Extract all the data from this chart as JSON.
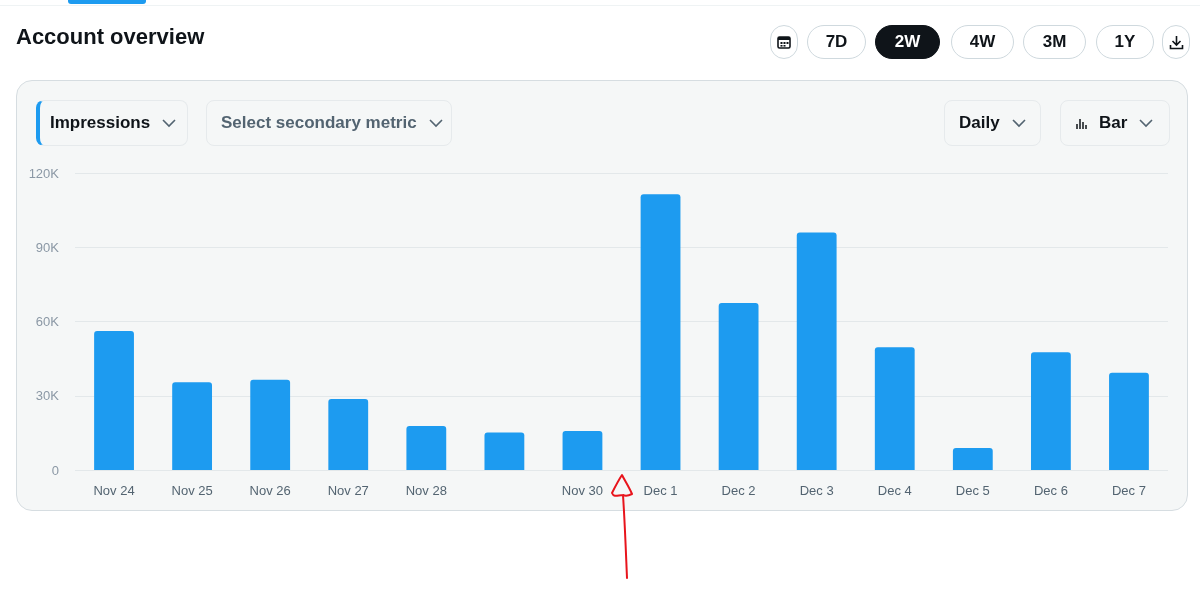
{
  "chart_data": {
    "type": "bar",
    "title": "Account overview",
    "annotations": [
      "7D",
      "2W",
      "4W",
      "3M",
      "1Y",
      "Impressions",
      "Select secondary metric",
      "Daily",
      "Bar"
    ],
    "categories": [
      "Nov 24",
      "Nov 25",
      "Nov 26",
      "Nov 27",
      "Nov 28",
      null,
      "Nov 30",
      "Dec 1",
      "Dec 2",
      "Dec 3",
      "Dec 4",
      "Dec 5",
      "Dec 6",
      "Dec 7"
    ],
    "values": [
      56200,
      35500,
      36500,
      28700,
      17800,
      15200,
      15800,
      111400,
      67500,
      96000,
      49600,
      8900,
      47600,
      39300
    ],
    "color": "#1d9bf0",
    "ylim": [
      0,
      120000
    ],
    "yticks": [
      0,
      {
        "value": 30000,
        "label": "30K"
      },
      {
        "value": 60000,
        "label": "60K"
      },
      {
        "value": 90000,
        "label": "90K"
      },
      {
        "value": 120000,
        "label": "120K"
      }
    ],
    "grid": "y"
  }
}
